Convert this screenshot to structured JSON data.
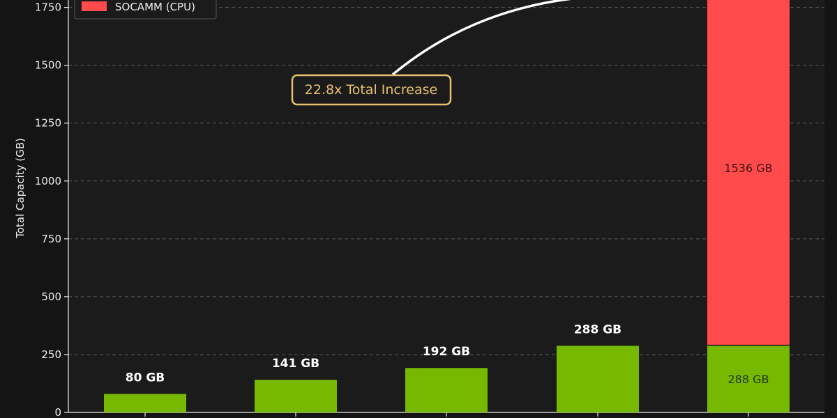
{
  "colors": {
    "background": "#141414",
    "plot_background": "#1b1b1b",
    "hbm": "#76b900",
    "socamm": "#ff4b4b",
    "text": "#eeeeee",
    "grid": "#5a5a5a",
    "annotation": "#e8c170"
  },
  "chart_data": {
    "type": "bar",
    "stacked": true,
    "ylabel": "Total Capacity (GB)",
    "ylim": [
      0,
      1800
    ],
    "yticks": [
      0,
      250,
      500,
      750,
      1000,
      1250,
      1500,
      1750
    ],
    "grid": true,
    "legend_position": "top-left",
    "categories": [
      "",
      "",
      "",
      "",
      ""
    ],
    "series": [
      {
        "name": "",
        "color": "#76b900",
        "values": [
          80,
          141,
          192,
          288,
          288
        ],
        "labels": [
          "80 GB",
          "141 GB",
          "192 GB",
          "288 GB",
          "288 GB"
        ]
      },
      {
        "name": "SOCAMM (CPU)",
        "color": "#ff4b4b",
        "values": [
          0,
          0,
          0,
          0,
          1536
        ],
        "labels": [
          "",
          "",
          "",
          "",
          "1536 GB"
        ]
      }
    ],
    "annotation": {
      "text": "22.8x Total Increase"
    }
  }
}
